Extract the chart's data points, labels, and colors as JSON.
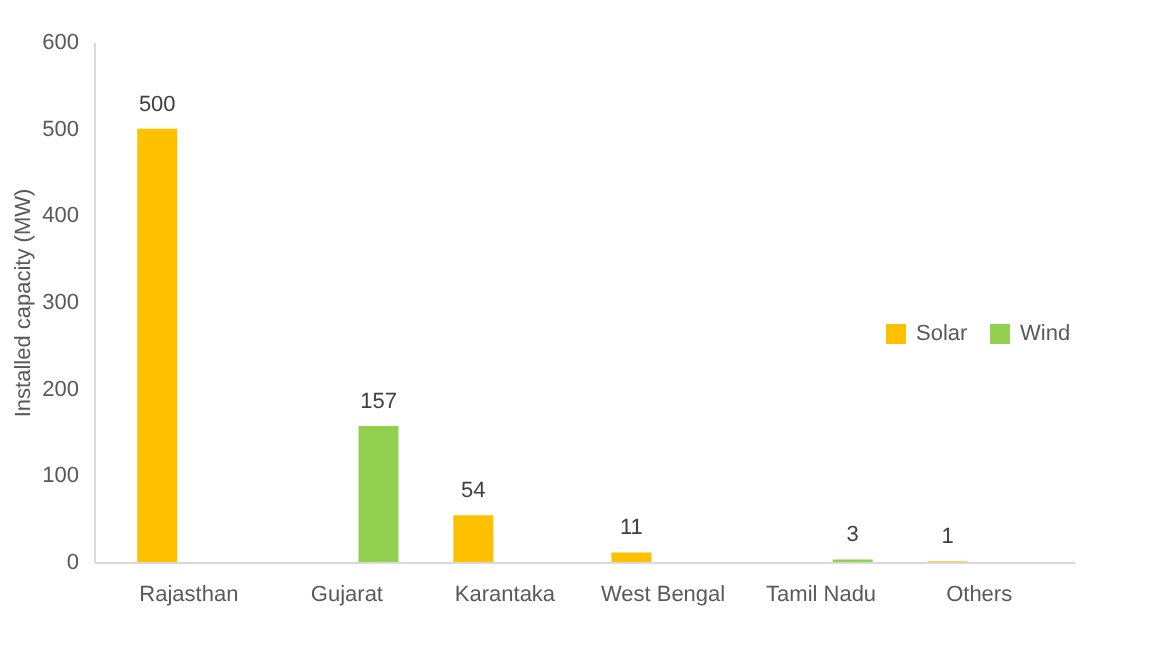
{
  "chart_data": {
    "type": "bar",
    "ylabel": "Installed capacity (MW)",
    "categories": [
      "Rajasthan",
      "Gujarat",
      "Karantaka",
      "West Bengal",
      "Tamil Nadu",
      "Others"
    ],
    "series": [
      {
        "name": "Solar",
        "color": "#ffc000",
        "values": [
          500,
          null,
          54,
          11,
          null,
          1
        ]
      },
      {
        "name": "Wind",
        "color": "#92d050",
        "values": [
          null,
          157,
          null,
          null,
          3,
          null
        ]
      }
    ],
    "ylim": [
      0,
      600
    ],
    "yticks": [
      0,
      100,
      200,
      300,
      400,
      500,
      600
    ],
    "grid": false,
    "data_labels": true,
    "legend": "right"
  }
}
